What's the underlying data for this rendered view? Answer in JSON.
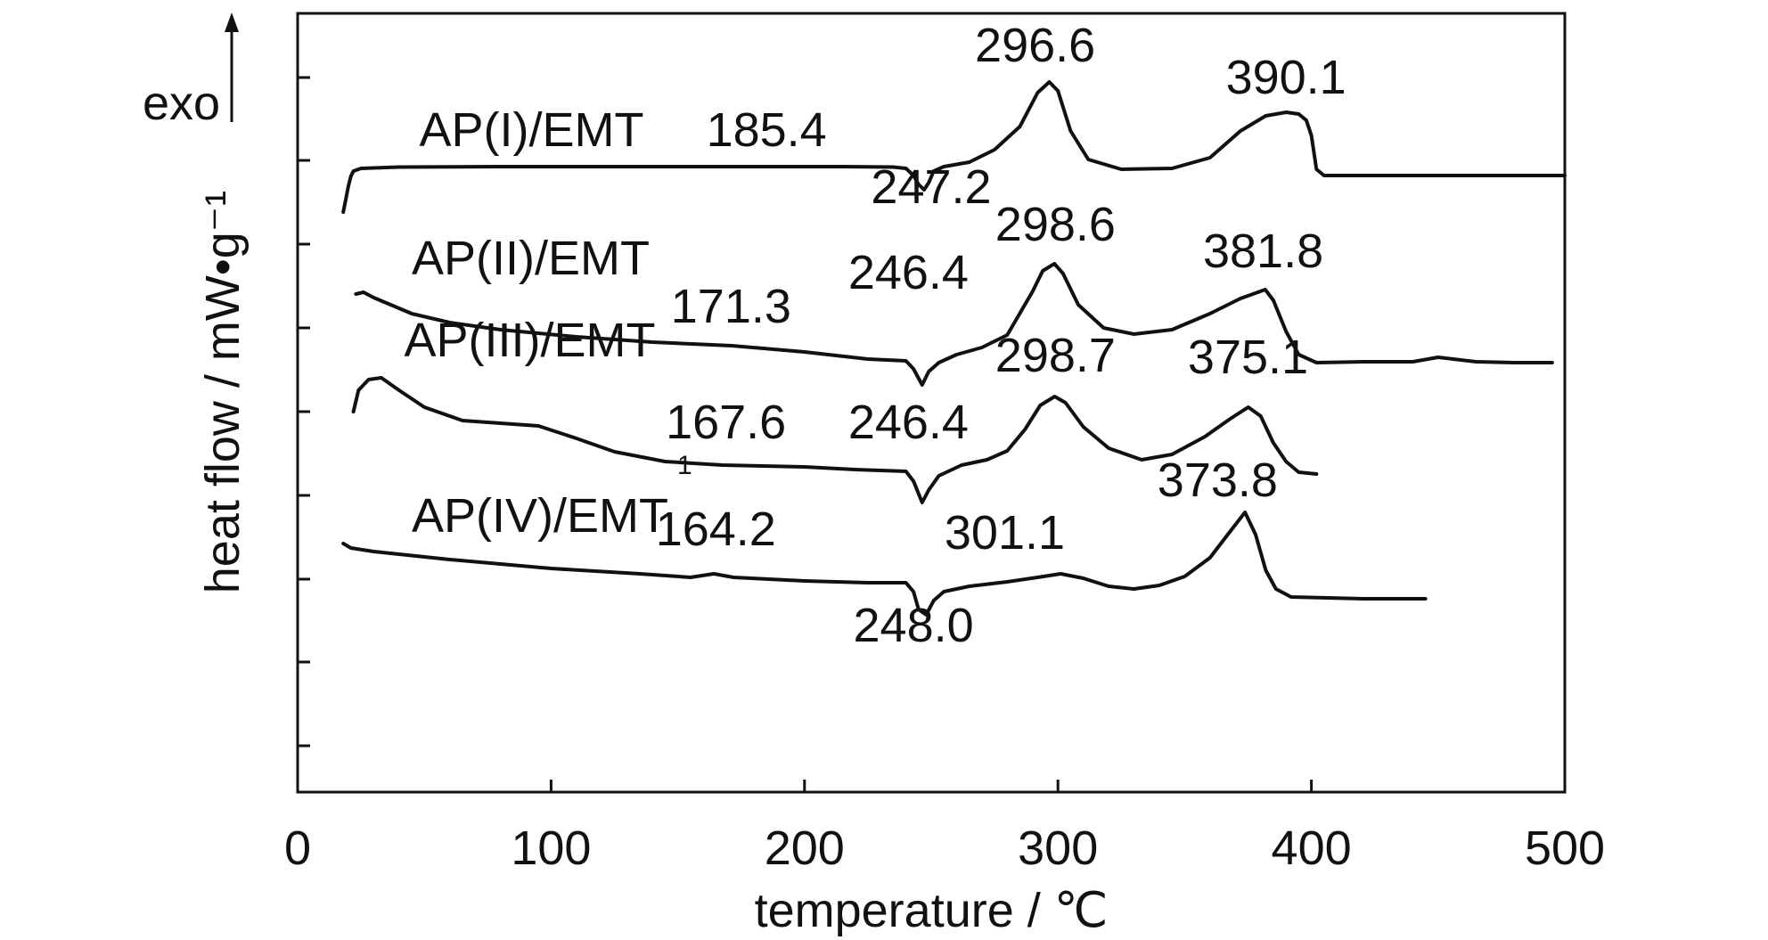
{
  "chart_data": {
    "type": "line",
    "title": "",
    "xlabel": "temperature / ℃",
    "ylabel": "heat flow / mW•g⁻¹",
    "exo_label": "exo",
    "xlim": [
      0,
      500
    ],
    "x_ticks": [
      "0",
      "100",
      "200",
      "300",
      "400",
      "500"
    ],
    "grid": false,
    "legend": "none",
    "line_color": "#111111",
    "stray_mark": "1",
    "series": [
      {
        "name": "AP(I)/EMT",
        "points": [
          [
            18,
            -1.6
          ],
          [
            19,
            -0.2
          ],
          [
            20,
            1.3
          ],
          [
            21,
            2.4
          ],
          [
            22,
            3.0
          ],
          [
            25,
            3.3
          ],
          [
            40,
            3.45
          ],
          [
            80,
            3.5
          ],
          [
            120,
            3.5
          ],
          [
            160,
            3.5
          ],
          [
            185.4,
            3.5
          ],
          [
            215,
            3.5
          ],
          [
            235,
            3.45
          ],
          [
            240,
            3.3
          ],
          [
            243,
            2.5
          ],
          [
            245,
            1.5
          ],
          [
            247.2,
            0.9
          ],
          [
            249,
            1.7
          ],
          [
            251,
            3.0
          ],
          [
            255,
            3.5
          ],
          [
            265,
            4.0
          ],
          [
            275,
            5.4
          ],
          [
            285,
            8.0
          ],
          [
            292,
            11.8
          ],
          [
            296.6,
            13.0
          ],
          [
            300,
            12.0
          ],
          [
            305,
            7.5
          ],
          [
            312,
            4.3
          ],
          [
            325,
            3.2
          ],
          [
            345,
            3.3
          ],
          [
            360,
            4.5
          ],
          [
            372,
            7.5
          ],
          [
            382,
            9.2
          ],
          [
            390.1,
            9.6
          ],
          [
            395,
            9.4
          ],
          [
            398,
            8.7
          ],
          [
            400,
            7.0
          ],
          [
            402,
            3.2
          ],
          [
            405,
            2.5
          ],
          [
            420,
            2.5
          ],
          [
            460,
            2.5
          ],
          [
            500,
            2.5
          ]
        ],
        "peaks": [
          {
            "x": 185.4,
            "y": 3.5,
            "label": "185.4",
            "lx": 185,
            "ly": 5.8
          },
          {
            "x": 247.2,
            "y": 0.9,
            "label": "247.2",
            "lx": 250,
            "ly": -0.6
          },
          {
            "x": 296.6,
            "y": 13.0,
            "label": "296.6",
            "lx": 291,
            "ly": 15.3
          },
          {
            "x": 390.1,
            "y": 9.6,
            "label": "390.1",
            "lx": 390,
            "ly": 11.7
          }
        ],
        "label_pos": [
          48,
          5.8
        ]
      },
      {
        "name": "AP(II)/EMT",
        "points": [
          [
            23,
            -10.8
          ],
          [
            26,
            -10.6
          ],
          [
            30,
            -11.2
          ],
          [
            45,
            -13.0
          ],
          [
            60,
            -14.0
          ],
          [
            80,
            -14.8
          ],
          [
            110,
            -15.6
          ],
          [
            140,
            -16.2
          ],
          [
            171.3,
            -16.6
          ],
          [
            200,
            -17.3
          ],
          [
            225,
            -18.1
          ],
          [
            240,
            -18.3
          ],
          [
            243,
            -19.2
          ],
          [
            246.4,
            -21.0
          ],
          [
            249,
            -19.5
          ],
          [
            253,
            -18.5
          ],
          [
            260,
            -17.6
          ],
          [
            270,
            -16.8
          ],
          [
            280,
            -15.4
          ],
          [
            290,
            -10.5
          ],
          [
            294,
            -8.2
          ],
          [
            298.6,
            -7.4
          ],
          [
            302,
            -8.5
          ],
          [
            308,
            -12.0
          ],
          [
            318,
            -14.6
          ],
          [
            330,
            -15.3
          ],
          [
            345,
            -14.8
          ],
          [
            360,
            -13.0
          ],
          [
            372,
            -11.3
          ],
          [
            381.8,
            -10.3
          ],
          [
            385,
            -11.5
          ],
          [
            390,
            -15.0
          ],
          [
            395,
            -17.6
          ],
          [
            402,
            -18.5
          ],
          [
            420,
            -18.4
          ],
          [
            440,
            -18.4
          ],
          [
            450,
            -17.9
          ],
          [
            465,
            -18.4
          ],
          [
            480,
            -18.5
          ],
          [
            495,
            -18.5
          ]
        ],
        "peaks": [
          {
            "x": 171.3,
            "y": -16.6,
            "label": "171.3",
            "lx": 171,
            "ly": -14.0
          },
          {
            "x": 246.4,
            "y": -21.0,
            "label": "246.4",
            "lx": 241,
            "ly": -10.2
          },
          {
            "x": 298.6,
            "y": -7.4,
            "label": "298.6",
            "lx": 299,
            "ly": -4.8
          },
          {
            "x": 381.8,
            "y": -10.3,
            "label": "381.8",
            "lx": 381,
            "ly": -7.8
          }
        ],
        "label_pos": [
          45,
          -8.6
        ]
      },
      {
        "name": "AP(III)/EMT",
        "points": [
          [
            22,
            -24.0
          ],
          [
            24,
            -21.6
          ],
          [
            28,
            -20.4
          ],
          [
            33,
            -20.2
          ],
          [
            40,
            -21.6
          ],
          [
            50,
            -23.5
          ],
          [
            65,
            -25.0
          ],
          [
            80,
            -25.3
          ],
          [
            95,
            -25.6
          ],
          [
            110,
            -27.0
          ],
          [
            125,
            -28.5
          ],
          [
            145,
            -29.6
          ],
          [
            167.6,
            -30.0
          ],
          [
            200,
            -30.2
          ],
          [
            220,
            -30.5
          ],
          [
            240,
            -30.7
          ],
          [
            243,
            -31.8
          ],
          [
            246.4,
            -34.2
          ],
          [
            249,
            -32.8
          ],
          [
            253,
            -31.2
          ],
          [
            262,
            -30.0
          ],
          [
            272,
            -29.4
          ],
          [
            280,
            -28.4
          ],
          [
            287,
            -26.0
          ],
          [
            293,
            -23.3
          ],
          [
            298.7,
            -22.3
          ],
          [
            303,
            -23.0
          ],
          [
            310,
            -25.7
          ],
          [
            320,
            -28.1
          ],
          [
            333,
            -29.4
          ],
          [
            345,
            -28.8
          ],
          [
            358,
            -26.8
          ],
          [
            368,
            -24.8
          ],
          [
            375.1,
            -23.5
          ],
          [
            380,
            -24.5
          ],
          [
            385,
            -27.5
          ],
          [
            390,
            -29.6
          ],
          [
            395,
            -30.8
          ],
          [
            402,
            -31.0
          ]
        ],
        "peaks": [
          {
            "x": 167.6,
            "y": -30.0,
            "label": "167.6",
            "lx": 169,
            "ly": -27.0
          },
          {
            "x": 246.4,
            "y": -34.2,
            "label": "246.4",
            "lx": 241,
            "ly": -27.0
          },
          {
            "x": 298.7,
            "y": -22.3,
            "label": "298.7",
            "lx": 299,
            "ly": -19.5
          },
          {
            "x": 375.1,
            "y": -23.5,
            "label": "375.1",
            "lx": 375,
            "ly": -19.7
          }
        ],
        "label_pos": [
          42,
          -17.8
        ]
      },
      {
        "name": "AP(IV)/EMT",
        "points": [
          [
            18,
            -38.8
          ],
          [
            21,
            -39.3
          ],
          [
            30,
            -39.7
          ],
          [
            60,
            -40.6
          ],
          [
            100,
            -41.6
          ],
          [
            135,
            -42.2
          ],
          [
            155,
            -42.6
          ],
          [
            164.2,
            -42.2
          ],
          [
            172,
            -42.6
          ],
          [
            200,
            -43.0
          ],
          [
            225,
            -43.2
          ],
          [
            240,
            -43.2
          ],
          [
            243,
            -44.2
          ],
          [
            245,
            -46.2
          ],
          [
            248.0,
            -46.8
          ],
          [
            251,
            -45.2
          ],
          [
            255,
            -44.2
          ],
          [
            265,
            -43.6
          ],
          [
            280,
            -43.1
          ],
          [
            292,
            -42.6
          ],
          [
            301.1,
            -42.2
          ],
          [
            310,
            -42.7
          ],
          [
            320,
            -43.6
          ],
          [
            330,
            -43.9
          ],
          [
            340,
            -43.5
          ],
          [
            350,
            -42.5
          ],
          [
            360,
            -40.4
          ],
          [
            367,
            -37.8
          ],
          [
            373.8,
            -35.3
          ],
          [
            378,
            -37.8
          ],
          [
            382,
            -41.8
          ],
          [
            386,
            -43.9
          ],
          [
            392,
            -44.8
          ],
          [
            420,
            -45.0
          ],
          [
            445,
            -45.0
          ]
        ],
        "peaks": [
          {
            "x": 164.2,
            "y": -42.2,
            "label": "164.2",
            "lx": 165,
            "ly": -39.0
          },
          {
            "x": 248.0,
            "y": -46.8,
            "label": "248.0",
            "lx": 243,
            "ly": -49.8
          },
          {
            "x": 301.1,
            "y": -42.2,
            "label": "301.1",
            "lx": 279,
            "ly": -39.4
          },
          {
            "x": 373.8,
            "y": -35.3,
            "label": "373.8",
            "lx": 363,
            "ly": -33.5
          }
        ],
        "label_pos": [
          45,
          -37.5
        ]
      }
    ]
  }
}
